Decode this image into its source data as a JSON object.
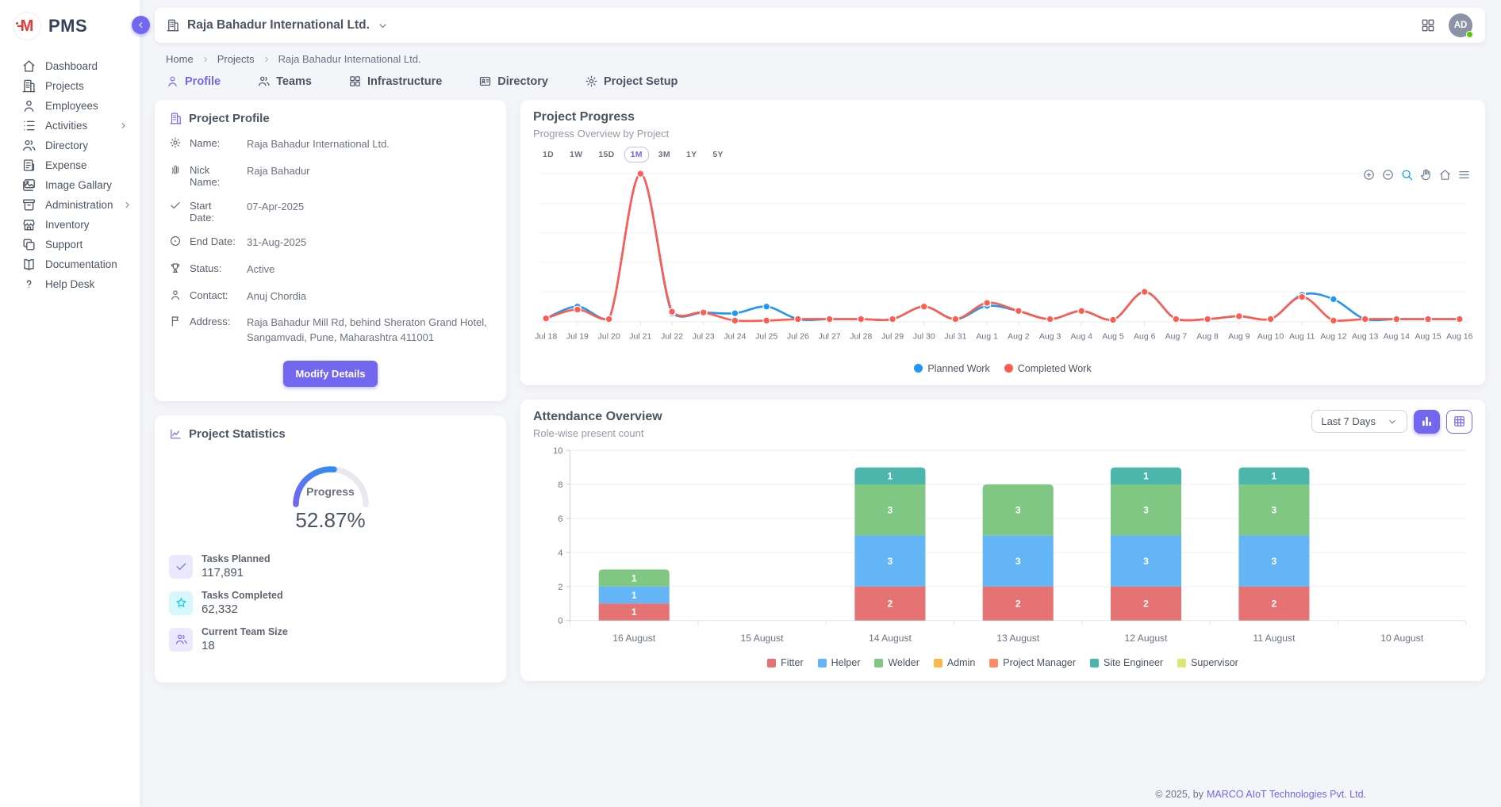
{
  "app": {
    "name": "PMS"
  },
  "sidebar": {
    "items": [
      {
        "label": "Dashboard",
        "icon": "home-icon",
        "has_submenu": false
      },
      {
        "label": "Projects",
        "icon": "building-icon",
        "has_submenu": false
      },
      {
        "label": "Employees",
        "icon": "user-icon",
        "has_submenu": false
      },
      {
        "label": "Activities",
        "icon": "list-icon",
        "has_submenu": true
      },
      {
        "label": "Directory",
        "icon": "users-icon",
        "has_submenu": false
      },
      {
        "label": "Expense",
        "icon": "receipt-icon",
        "has_submenu": false
      },
      {
        "label": "Image Gallary",
        "icon": "photo-icon",
        "has_submenu": false
      },
      {
        "label": "Administration",
        "icon": "archive-icon",
        "has_submenu": true
      },
      {
        "label": "Inventory",
        "icon": "store-icon",
        "has_submenu": false
      },
      {
        "label": "Support",
        "icon": "copy-icon",
        "has_submenu": false
      },
      {
        "label": "Documentation",
        "icon": "book-icon",
        "has_submenu": false
      },
      {
        "label": "Help Desk",
        "icon": "help-icon",
        "has_submenu": false
      }
    ]
  },
  "header": {
    "company": "Raja Bahadur International Ltd.",
    "avatar_initials": "AD"
  },
  "breadcrumb": [
    "Home",
    "Projects",
    "Raja Bahadur International Ltd."
  ],
  "tabs": [
    {
      "label": "Profile",
      "icon": "user-icon",
      "active": true
    },
    {
      "label": "Teams",
      "icon": "users-icon",
      "active": false
    },
    {
      "label": "Infrastructure",
      "icon": "grid-icon",
      "active": false
    },
    {
      "label": "Directory",
      "icon": "id-card-icon",
      "active": false
    },
    {
      "label": "Project Setup",
      "icon": "gear-icon",
      "active": false
    }
  ],
  "profile_card": {
    "title": "Project Profile",
    "fields": [
      {
        "icon": "gear-icon",
        "label": "Name:",
        "value": "Raja Bahadur International Ltd."
      },
      {
        "icon": "fingerprint-icon",
        "label": "Nick Name:",
        "value": "Raja Bahadur"
      },
      {
        "icon": "check-icon",
        "label": "Start Date:",
        "value": "07-Apr-2025"
      },
      {
        "icon": "circle-dot-icon",
        "label": "End Date:",
        "value": "31-Aug-2025"
      },
      {
        "icon": "trophy-icon",
        "label": "Status:",
        "value": "Active"
      },
      {
        "icon": "user-icon",
        "label": "Contact:",
        "value": "Anuj Chordia"
      },
      {
        "icon": "flag-icon",
        "label": "Address:",
        "value": "Raja Bahadur Mill Rd, behind Sheraton Grand Hotel, Sangamvadi, Pune, Maharashtra 411001"
      }
    ],
    "button_label": "Modify Details"
  },
  "stats_card": {
    "title": "Project Statistics",
    "gauge": {
      "label": "Progress",
      "value": "52.87%",
      "percent": 52.87
    },
    "stats": [
      {
        "icon": "check-icon",
        "label": "Tasks Planned",
        "value": "117,891",
        "theme": "purple"
      },
      {
        "icon": "star-icon",
        "label": "Tasks Completed",
        "value": "62,332",
        "theme": "cyan"
      },
      {
        "icon": "users-icon",
        "label": "Current Team Size",
        "value": "18",
        "theme": "purple"
      }
    ]
  },
  "progress_card": {
    "title": "Project Progress",
    "subtitle": "Progress Overview by Project",
    "ranges": [
      "1D",
      "1W",
      "15D",
      "1M",
      "3M",
      "1Y",
      "5Y"
    ],
    "active_range": "1M",
    "toolbar": [
      "zoom-in-icon",
      "zoom-out-icon",
      "magnifier-icon",
      "hand-icon",
      "home-icon",
      "menu-icon"
    ],
    "toolbar_active": "magnifier-icon"
  },
  "attendance_card": {
    "title": "Attendance Overview",
    "subtitle": "Role-wise present count",
    "filter_value": "Last 7 Days"
  },
  "footer": {
    "copyright": "© 2025, by",
    "company": "MARCO AIoT Technologies Pvt. Ltd."
  },
  "colors": {
    "accent": "#7367f0",
    "planned": "#2196f3",
    "completed": "#ff5b4f",
    "gauge_start": "#7367f0",
    "gauge_end": "#2196f3",
    "gauge_track": "#e7e9ef"
  },
  "chart_data": [
    {
      "id": "project-progress",
      "type": "line",
      "title": "Project Progress",
      "x": [
        "Jul 18",
        "Jul 19",
        "Jul 20",
        "Jul 21",
        "Jul 22",
        "Jul 23",
        "Jul 24",
        "Jul 25",
        "Jul 26",
        "Jul 27",
        "Jul 28",
        "Jul 29",
        "Jul 30",
        "Jul 31",
        "Aug 1",
        "Aug 2",
        "Aug 3",
        "Aug 4",
        "Aug 5",
        "Aug 6",
        "Aug 7",
        "Aug 8",
        "Aug 9",
        "Aug 10",
        "Aug 11",
        "Aug 12",
        "Aug 13",
        "Aug 14",
        "Aug 15",
        "Aug 16"
      ],
      "series": [
        {
          "name": "Planned Work",
          "color": "#2196f3",
          "values": [
            0.2,
            1.0,
            0.15,
            10,
            0.55,
            0.6,
            0.55,
            1.0,
            0.15,
            0.15,
            0.15,
            0.15,
            1.0,
            0.15,
            1.05,
            0.7,
            0.15,
            0.7,
            0.1,
            2.0,
            0.15,
            0.15,
            0.35,
            0.15,
            1.8,
            1.5,
            0.15,
            0.15,
            0.15,
            0.15
          ]
        },
        {
          "name": "Completed Work",
          "color": "#ff5b4f",
          "values": [
            0.2,
            0.8,
            0.15,
            10,
            0.65,
            0.6,
            0.05,
            0.05,
            0.15,
            0.15,
            0.15,
            0.15,
            1.0,
            0.15,
            1.25,
            0.7,
            0.15,
            0.7,
            0.1,
            2.0,
            0.15,
            0.15,
            0.35,
            0.15,
            1.65,
            0.05,
            0.15,
            0.15,
            0.15,
            0.15
          ]
        }
      ],
      "ylim": [
        0,
        10
      ],
      "grid": true,
      "legend_position": "bottom"
    },
    {
      "id": "attendance",
      "type": "bar",
      "stacked": true,
      "categories": [
        "16 August",
        "15 August",
        "14 August",
        "13 August",
        "12 August",
        "11 August",
        "10 August"
      ],
      "series": [
        {
          "name": "Fitter",
          "color": "#e57373",
          "values": [
            1,
            0,
            2,
            2,
            2,
            2,
            0
          ]
        },
        {
          "name": "Helper",
          "color": "#64b5f6",
          "values": [
            1,
            0,
            3,
            3,
            3,
            3,
            0
          ]
        },
        {
          "name": "Welder",
          "color": "#81c784",
          "values": [
            1,
            0,
            3,
            3,
            3,
            3,
            0
          ]
        },
        {
          "name": "Admin",
          "color": "#ffb74d",
          "values": [
            0,
            0,
            0,
            0,
            0,
            0,
            0
          ]
        },
        {
          "name": "Project Manager",
          "color": "#ff8a65",
          "values": [
            0,
            0,
            0,
            0,
            0,
            0,
            0
          ]
        },
        {
          "name": "Site Engineer",
          "color": "#4db6ac",
          "values": [
            0,
            0,
            1,
            0,
            1,
            1,
            0
          ]
        },
        {
          "name": "Supervisor",
          "color": "#dce775",
          "values": [
            0,
            0,
            0,
            0,
            0,
            0,
            0
          ]
        }
      ],
      "ylim": [
        0,
        10
      ],
      "yticks": [
        0,
        2,
        4,
        6,
        8,
        10
      ],
      "grid": true,
      "legend_position": "bottom"
    }
  ]
}
